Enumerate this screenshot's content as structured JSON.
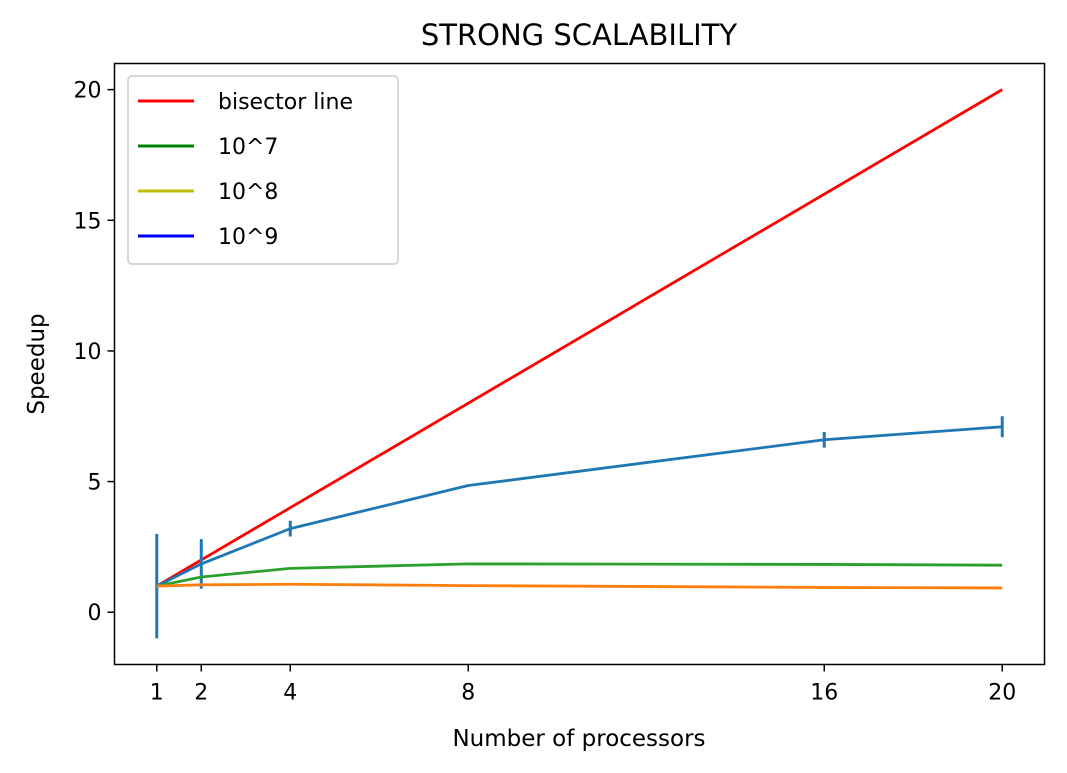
{
  "chart_data": {
    "type": "line",
    "title": "STRONG SCALABILITY",
    "xlabel": "Number of processors",
    "ylabel": "Speedup",
    "xlim": [
      0.05,
      20.95
    ],
    "ylim": [
      -2,
      21
    ],
    "xticks": [
      1,
      2,
      4,
      8,
      16,
      20
    ],
    "yticks": [
      0,
      5,
      10,
      15,
      20
    ],
    "grid": false,
    "legend_position": "top-left",
    "legend": [
      {
        "label": "bisector line",
        "color": "#ff0000"
      },
      {
        "label": "10^7",
        "color": "#008000"
      },
      {
        "label": "10^8",
        "color": "#bfbf00"
      },
      {
        "label": "10^9",
        "color": "#0000ff"
      }
    ],
    "series": [
      {
        "color": "#ff0000",
        "x": [
          1,
          2,
          4,
          8,
          16,
          20
        ],
        "y": [
          1,
          2,
          4,
          8,
          16,
          20
        ]
      },
      {
        "color": "#1f77b4",
        "x": [
          1,
          2,
          4,
          8,
          16,
          20
        ],
        "y": [
          1,
          1.85,
          3.2,
          4.85,
          6.6,
          7.1
        ],
        "yerr": [
          2.0,
          0.95,
          0.3,
          0.0,
          0.3,
          0.4
        ]
      },
      {
        "color": "#2ca02c",
        "x": [
          1,
          2,
          4,
          8,
          16,
          20
        ],
        "y": [
          1,
          1.35,
          1.68,
          1.85,
          1.83,
          1.8
        ]
      },
      {
        "color": "#ff7f0e",
        "x": [
          1,
          2,
          4,
          8,
          16,
          20
        ],
        "y": [
          1,
          1.05,
          1.07,
          1.02,
          0.95,
          0.93
        ]
      }
    ]
  }
}
